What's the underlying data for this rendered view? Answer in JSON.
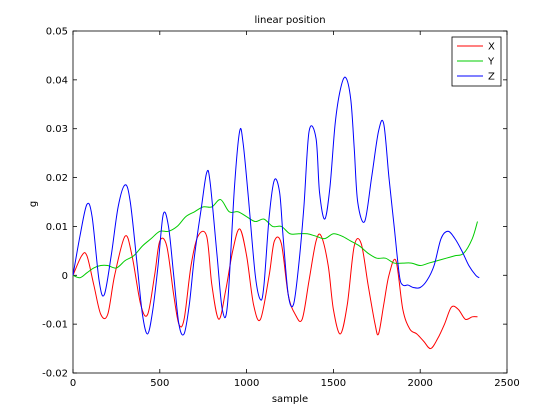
{
  "chart_data": {
    "type": "line",
    "title": "linear position",
    "xlabel": "sample",
    "ylabel": "g",
    "xlim": [
      0,
      2500
    ],
    "ylim": [
      -0.02,
      0.05
    ],
    "xticks": [
      0,
      500,
      1000,
      1500,
      2000,
      2500
    ],
    "yticks": [
      -0.02,
      -0.01,
      0,
      0.01,
      0.02,
      0.03,
      0.04,
      0.05
    ],
    "xtick_labels": [
      "0",
      "500",
      "1000",
      "1500",
      "2000",
      "2500"
    ],
    "ytick_labels": [
      "-0.02",
      "-0.01",
      "0",
      "0.01",
      "0.02",
      "0.03",
      "0.04",
      "0.05"
    ],
    "grid": false,
    "legend_position": "top-right",
    "series": [
      {
        "name": "X",
        "color": "#ff0000",
        "x": [
          0,
          50,
          80,
          120,
          160,
          200,
          240,
          300,
          340,
          390,
          430,
          470,
          500,
          540,
          580,
          610,
          640,
          680,
          720,
          770,
          800,
          840,
          880,
          920,
          960,
          1000,
          1040,
          1080,
          1130,
          1160,
          1200,
          1240,
          1280,
          1320,
          1360,
          1400,
          1430,
          1470,
          1500,
          1540,
          1580,
          1620,
          1660,
          1700,
          1740,
          1760,
          1790,
          1820,
          1860,
          1900,
          1940,
          1980,
          2020,
          2060,
          2100,
          2140,
          2180,
          2220,
          2260,
          2300,
          2330
        ],
        "y": [
          0,
          0.004,
          0.004,
          -0.002,
          -0.008,
          -0.008,
          0.0,
          0.008,
          0.004,
          -0.006,
          -0.008,
          0.0,
          0.007,
          0.006,
          -0.004,
          -0.01,
          -0.009,
          0.002,
          0.008,
          0.008,
          -0.002,
          -0.009,
          -0.003,
          0.005,
          0.0095,
          0.004,
          -0.006,
          -0.009,
          0.0,
          0.007,
          0.0065,
          -0.004,
          -0.008,
          -0.009,
          -0.001,
          0.007,
          0.008,
          0.002,
          -0.007,
          -0.012,
          -0.006,
          0.006,
          0.0065,
          -0.002,
          -0.01,
          -0.012,
          -0.006,
          0.0,
          0.003,
          -0.007,
          -0.011,
          -0.012,
          -0.0135,
          -0.015,
          -0.013,
          -0.01,
          -0.0065,
          -0.007,
          -0.009,
          -0.0085,
          -0.0085
        ]
      },
      {
        "name": "Y",
        "color": "#00cc00",
        "x": [
          0,
          40,
          80,
          120,
          160,
          200,
          250,
          300,
          350,
          400,
          450,
          500,
          550,
          600,
          650,
          700,
          750,
          800,
          850,
          900,
          950,
          1000,
          1050,
          1100,
          1150,
          1200,
          1250,
          1300,
          1350,
          1400,
          1450,
          1500,
          1550,
          1600,
          1650,
          1700,
          1750,
          1800,
          1850,
          1900,
          1950,
          2000,
          2050,
          2100,
          2150,
          2200,
          2250,
          2300,
          2330
        ],
        "y": [
          0,
          -0.0005,
          0.0005,
          0.0015,
          0.002,
          0.002,
          0.0015,
          0.003,
          0.004,
          0.006,
          0.0075,
          0.009,
          0.009,
          0.01,
          0.012,
          0.013,
          0.014,
          0.014,
          0.0155,
          0.013,
          0.013,
          0.012,
          0.011,
          0.0115,
          0.01,
          0.01,
          0.0085,
          0.0085,
          0.0085,
          0.008,
          0.0075,
          0.0085,
          0.008,
          0.007,
          0.006,
          0.0045,
          0.0035,
          0.0035,
          0.0025,
          0.0025,
          0.0025,
          0.002,
          0.0025,
          0.003,
          0.0035,
          0.004,
          0.0045,
          0.0075,
          0.011
        ]
      },
      {
        "name": "Z",
        "color": "#0000ff",
        "x": [
          0,
          40,
          80,
          110,
          150,
          180,
          220,
          260,
          300,
          330,
          370,
          400,
          430,
          460,
          490,
          520,
          550,
          580,
          610,
          640,
          670,
          700,
          740,
          770,
          790,
          830,
          860,
          890,
          930,
          960,
          980,
          1010,
          1050,
          1080,
          1100,
          1130,
          1160,
          1190,
          1210,
          1240,
          1270,
          1300,
          1330,
          1360,
          1400,
          1420,
          1450,
          1480,
          1510,
          1540,
          1570,
          1600,
          1620,
          1640,
          1680,
          1720,
          1760,
          1790,
          1820,
          1850,
          1880,
          1900,
          1930,
          1960,
          2000,
          2040,
          2080,
          2120,
          2160,
          2200,
          2240,
          2280,
          2320,
          2340
        ],
        "y": [
          0,
          0.008,
          0.0145,
          0.012,
          -0.001,
          -0.004,
          0.004,
          0.014,
          0.0185,
          0.015,
          0.002,
          -0.008,
          -0.012,
          -0.007,
          0.002,
          0.0125,
          0.01,
          0.0,
          -0.01,
          -0.012,
          -0.006,
          0.004,
          0.014,
          0.021,
          0.019,
          0.004,
          -0.007,
          -0.006,
          0.018,
          0.0295,
          0.027,
          0.016,
          0.0,
          -0.005,
          -0.002,
          0.012,
          0.0195,
          0.017,
          0.008,
          -0.004,
          -0.006,
          0.002,
          0.014,
          0.0295,
          0.028,
          0.017,
          0.0115,
          0.018,
          0.031,
          0.038,
          0.0405,
          0.036,
          0.026,
          0.015,
          0.011,
          0.02,
          0.0295,
          0.031,
          0.02,
          0.01,
          0.0,
          -0.002,
          -0.002,
          -0.0025,
          -0.0025,
          -0.001,
          0.002,
          0.0075,
          0.009,
          0.0075,
          0.005,
          0.002,
          0.0,
          -0.0005
        ]
      }
    ]
  }
}
